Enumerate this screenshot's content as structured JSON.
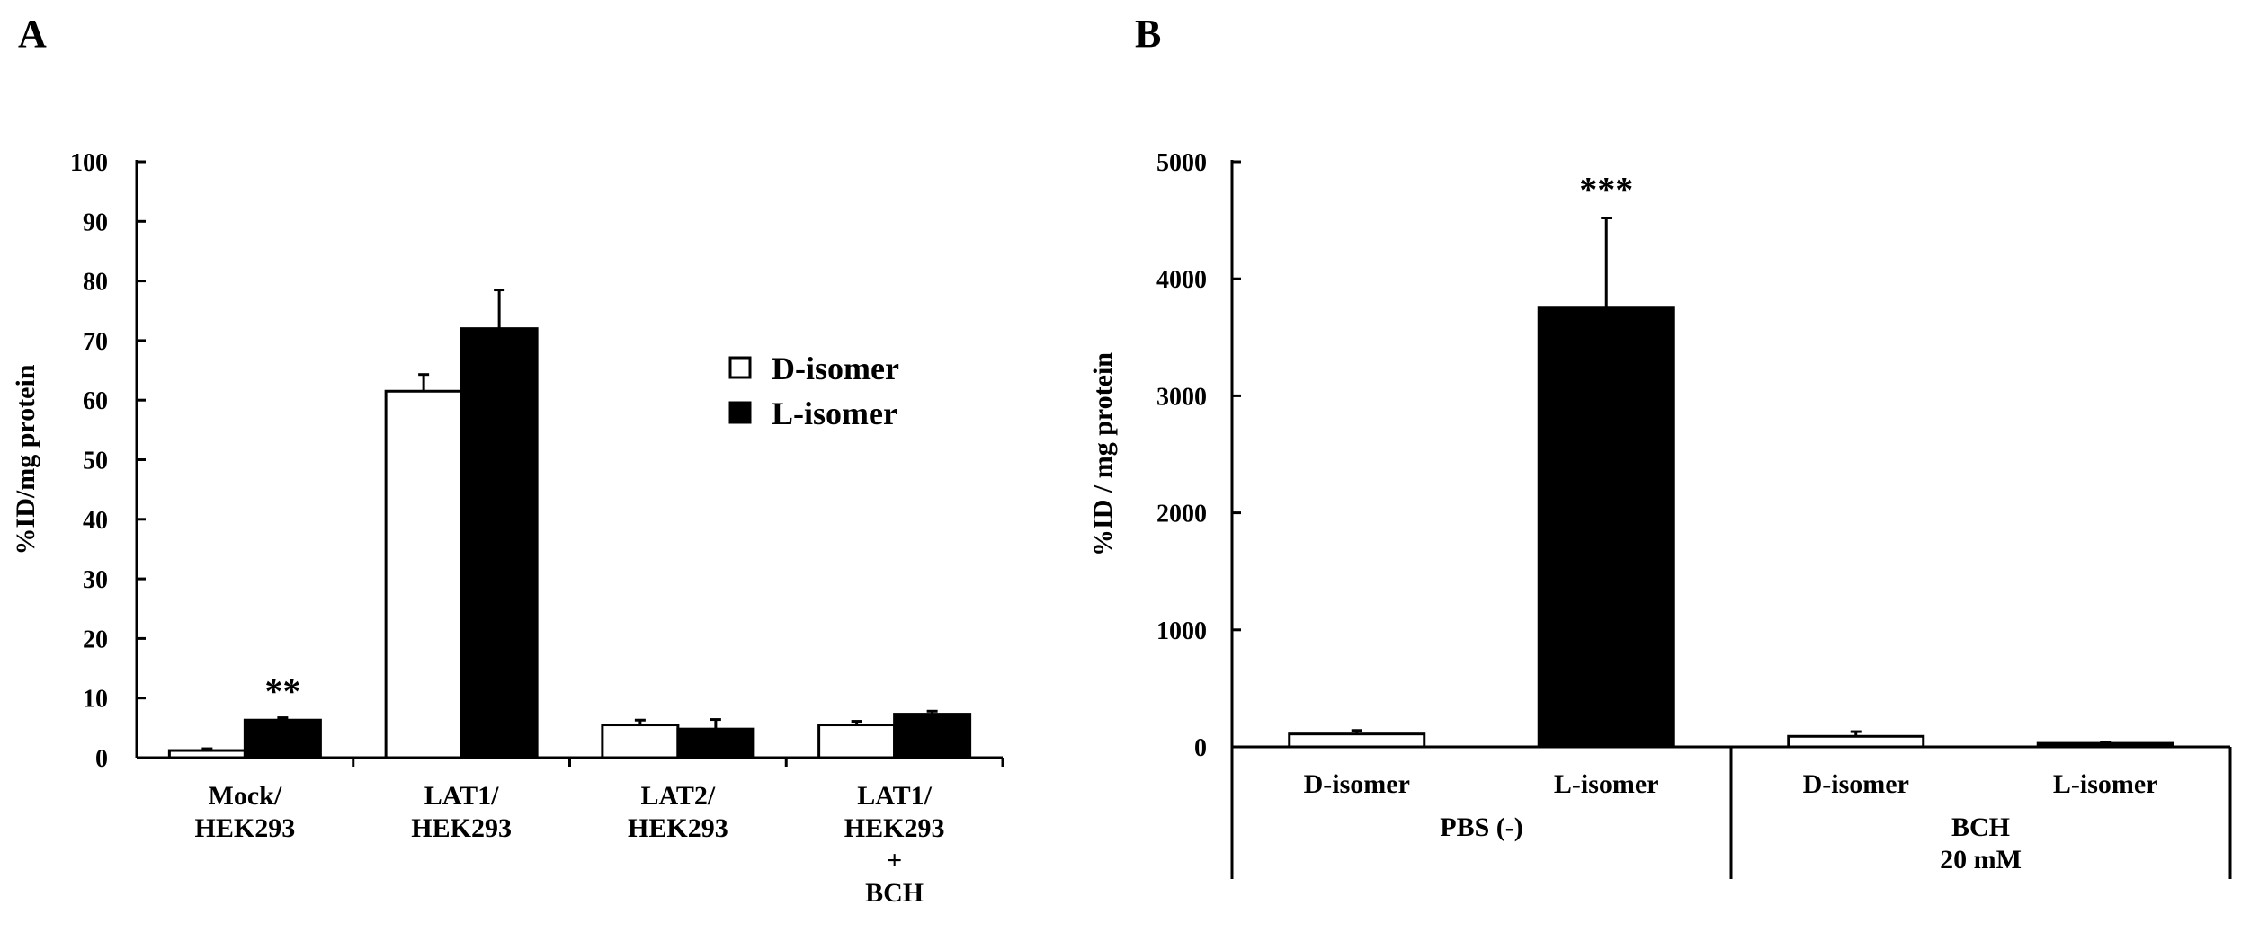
{
  "chart_data": [
    {
      "panel": "A",
      "type": "bar",
      "ylabel": "%ID/mg protein",
      "ylim": [
        0,
        100
      ],
      "yticks": [
        0,
        10,
        20,
        30,
        40,
        50,
        60,
        70,
        80,
        90,
        100
      ],
      "categories": [
        [
          "Mock/",
          "HEK293"
        ],
        [
          "LAT1/",
          "HEK293"
        ],
        [
          "LAT2/",
          "HEK293"
        ],
        [
          "LAT1/",
          "HEK293",
          "+",
          "BCH"
        ]
      ],
      "series": [
        {
          "name": "D-isomer",
          "fill": "#ffffff",
          "values": [
            1.2,
            61.5,
            5.5,
            5.5
          ],
          "errors": [
            0.3,
            2.8,
            0.8,
            0.6
          ]
        },
        {
          "name": "L-isomer",
          "fill": "#000000",
          "values": [
            6.3,
            72.0,
            4.8,
            7.3
          ],
          "errors": [
            0.4,
            6.5,
            1.6,
            0.5
          ]
        }
      ],
      "annotations": [
        {
          "category": 0,
          "series": 1,
          "text": "**"
        }
      ],
      "legend": "right"
    },
    {
      "panel": "B",
      "type": "bar",
      "ylabel": "%ID / mg protein",
      "ylim": [
        0,
        5000
      ],
      "yticks": [
        0,
        1000,
        2000,
        3000,
        4000,
        5000
      ],
      "categories": [
        "D-isomer",
        "L-isomer",
        "D-isomer",
        "L-isomer"
      ],
      "values": [
        110,
        3750,
        90,
        30
      ],
      "errors": [
        30,
        770,
        40,
        10
      ],
      "fills": [
        "#ffffff",
        "#000000",
        "#ffffff",
        "#000000"
      ],
      "groups": [
        {
          "label": [
            "PBS (-)"
          ]
        },
        {
          "label": [
            "BCH",
            "20 mM"
          ]
        }
      ],
      "annotations": [
        {
          "category": 1,
          "text": "***"
        }
      ]
    }
  ]
}
